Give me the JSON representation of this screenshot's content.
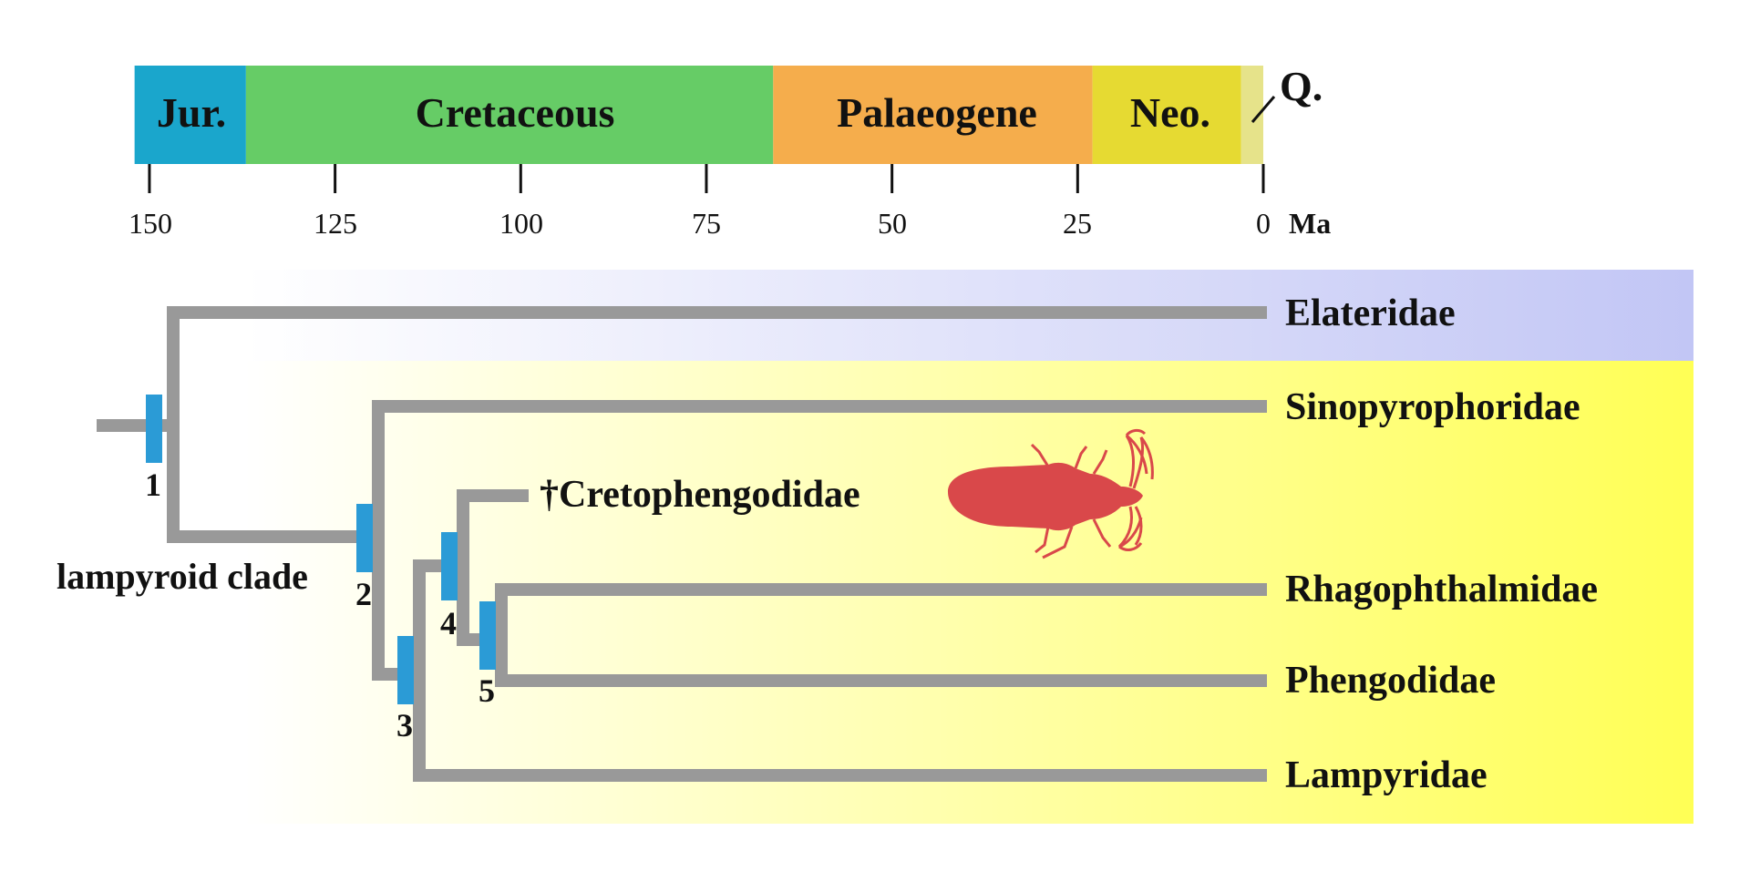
{
  "timescale": {
    "periods": [
      {
        "label": "Jur.",
        "start_ma": 152,
        "end_ma": 137,
        "color": "#1aa6cc"
      },
      {
        "label": "Cretaceous",
        "start_ma": 137,
        "end_ma": 66,
        "color": "#66cc66"
      },
      {
        "label": "Palaeogene",
        "start_ma": 66,
        "end_ma": 23,
        "color": "#f5ad4c"
      },
      {
        "label": "Neo.",
        "start_ma": 23,
        "end_ma": 3,
        "color": "#e6da32"
      },
      {
        "label": "",
        "start_ma": 3,
        "end_ma": 0,
        "color": "#e6e38a"
      }
    ],
    "quaternary_label": "Q.",
    "ticks": [
      "150",
      "125",
      "100",
      "75",
      "50",
      "25",
      "0"
    ],
    "unit": "Ma"
  },
  "tree": {
    "clade_label": "lampyroid clade",
    "taxa": [
      {
        "name": "Elateridae",
        "color": "#111111"
      },
      {
        "name": "Sinopyrophoridae",
        "color": "#111111"
      },
      {
        "name": "†Cretophengodidae",
        "color": "#d9484a"
      },
      {
        "name": "Rhagophthalmidae",
        "color": "#111111"
      },
      {
        "name": "Phengodidae",
        "color": "#111111"
      },
      {
        "name": "Lampyridae",
        "color": "#111111"
      }
    ],
    "nodes": [
      "1",
      "2",
      "3",
      "4",
      "5"
    ],
    "branch_color": "#999999",
    "node_marker_color": "#2b9bd6",
    "fossil_silhouette_color": "#d9484a",
    "elateridae_band_color": "#c2c6f5",
    "lampyroid_band_color": "#ffff55"
  }
}
